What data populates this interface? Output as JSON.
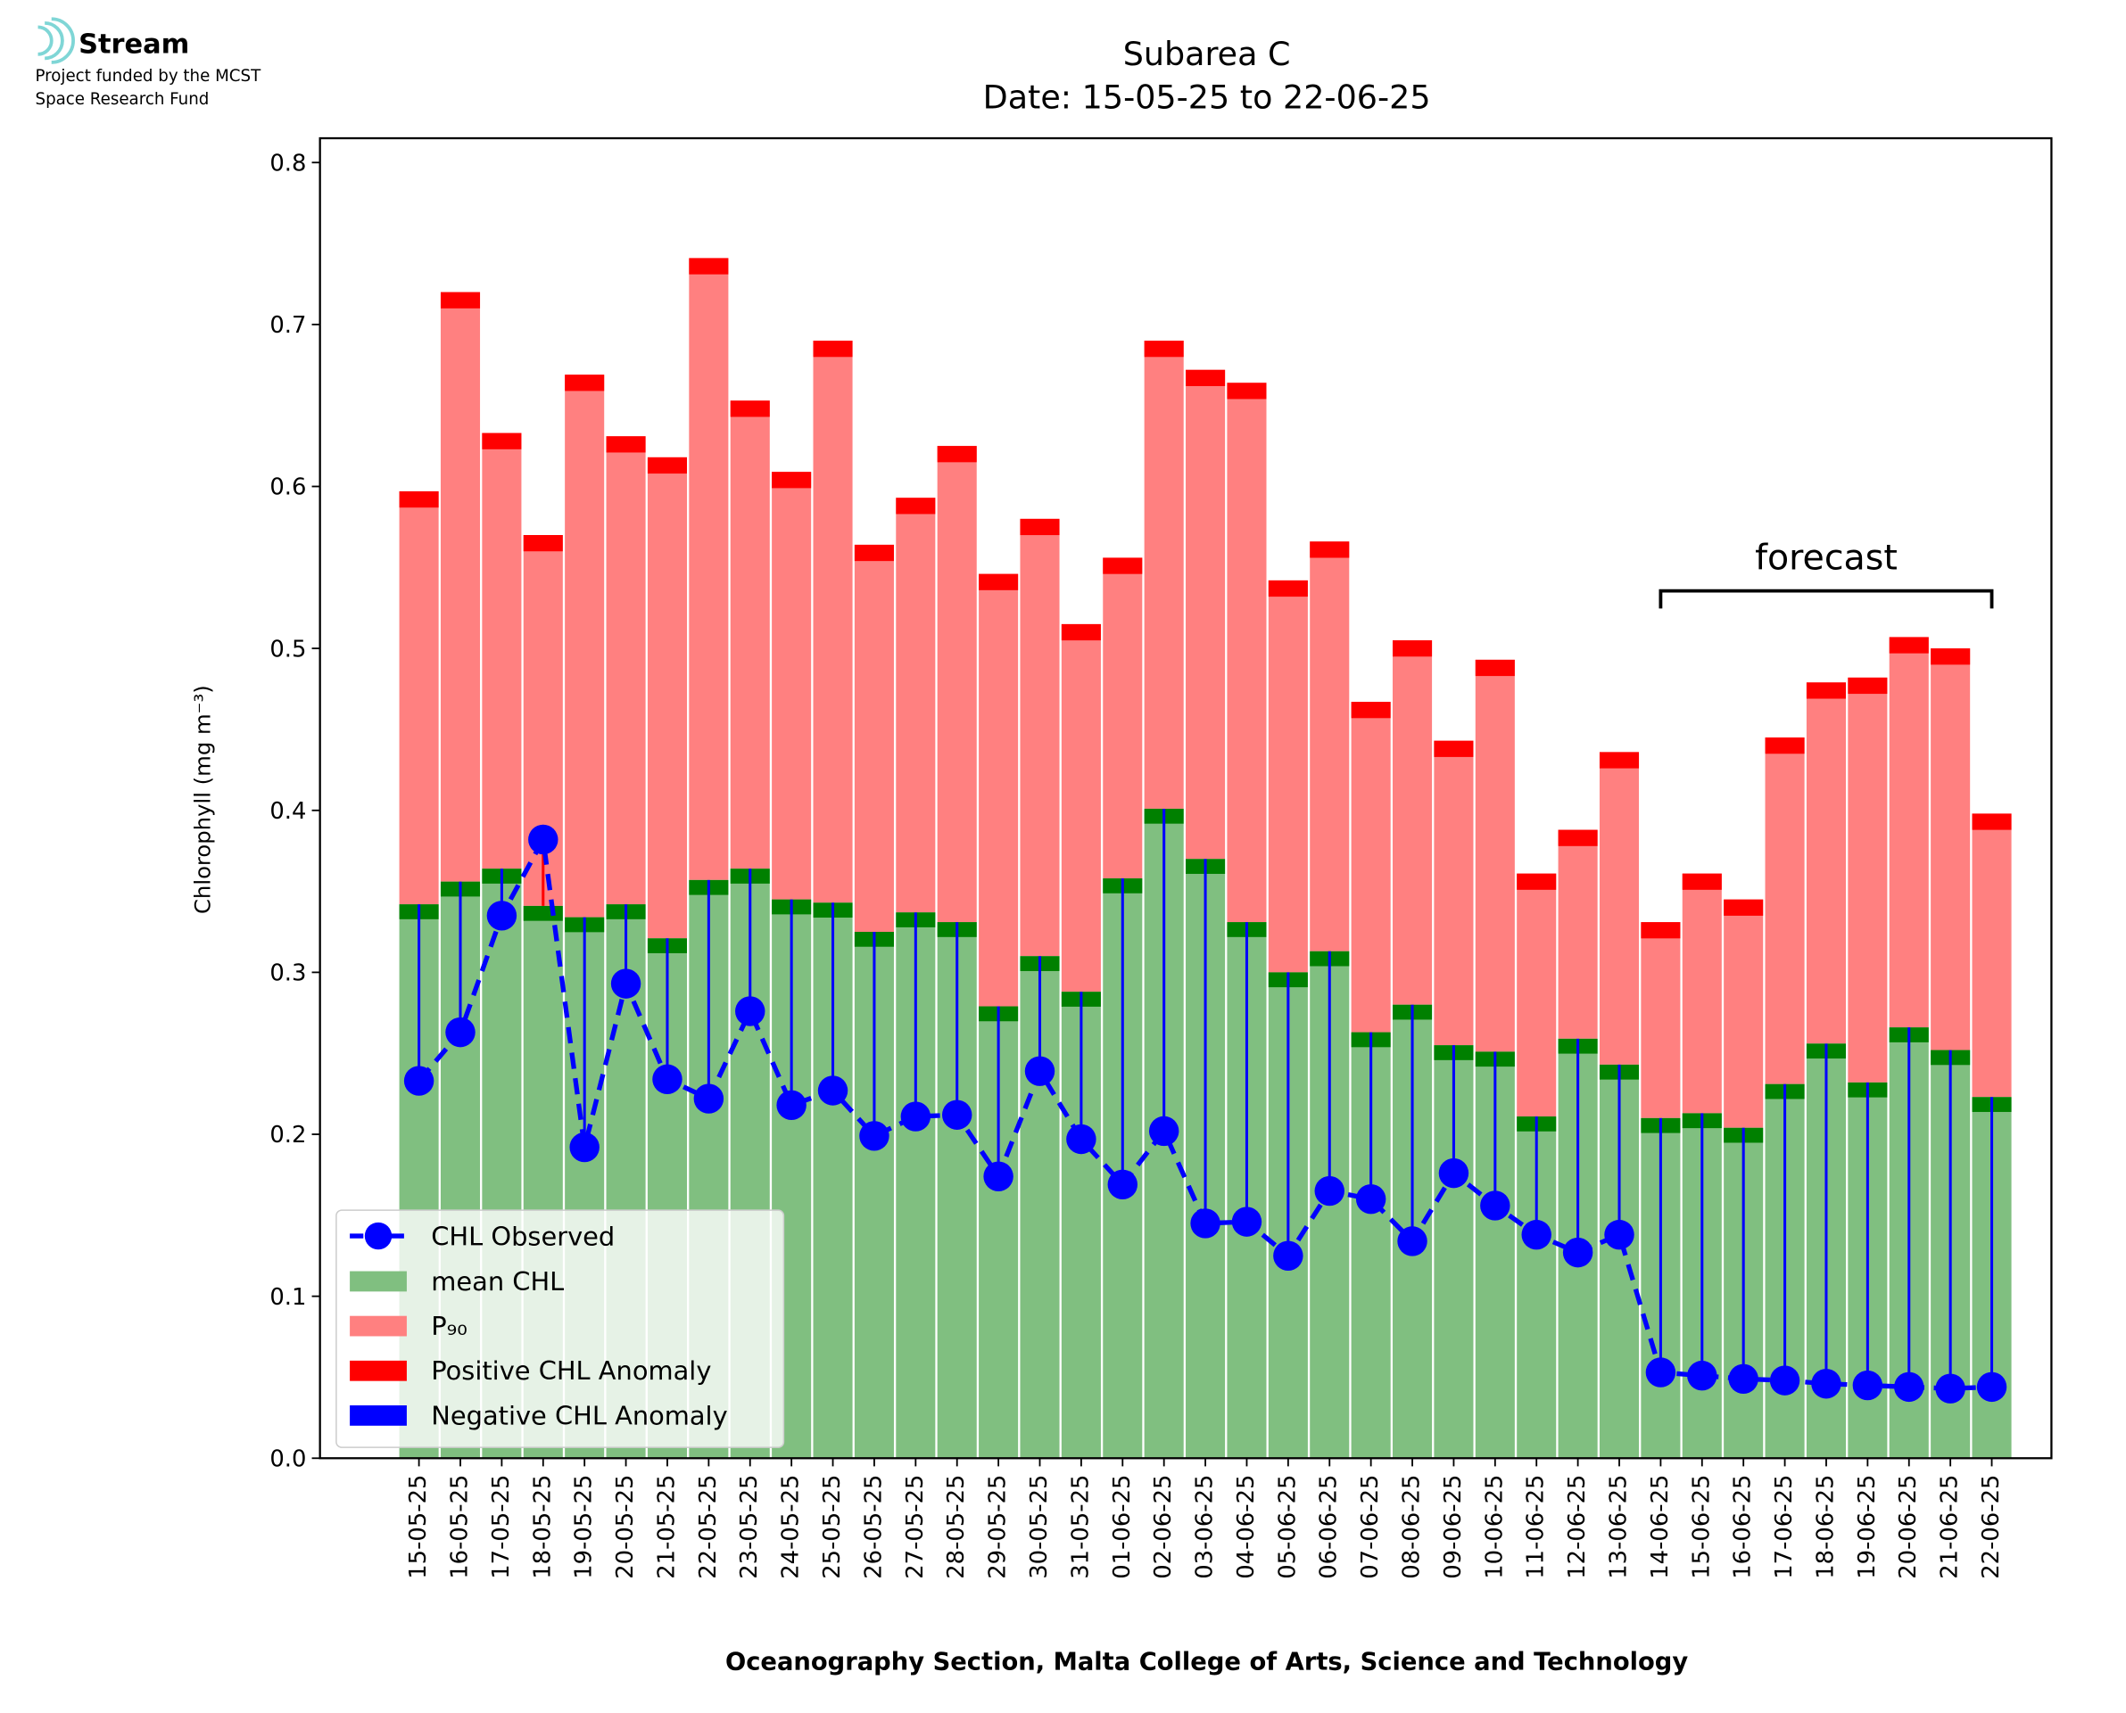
{
  "logo": {
    "name": "Stream",
    "lines": [
      "Project funded by the MCST",
      "Space Research Fund"
    ]
  },
  "chart_data": {
    "type": "bar",
    "title": [
      "Subarea C",
      "Date: 15-05-25 to 22-06-25"
    ],
    "y_label": "Chlorophyll (mg m⁻³)",
    "x_label": "Oceanography Section, Malta College of Arts, Science and Technology",
    "annotation": "forecast",
    "forecast_range": [
      "14-06-25",
      "22-06-25"
    ],
    "categories": [
      "15-05-25",
      "16-05-25",
      "17-05-25",
      "18-05-25",
      "19-05-25",
      "20-05-25",
      "21-05-25",
      "22-05-25",
      "23-05-25",
      "24-05-25",
      "25-05-25",
      "26-05-25",
      "27-05-25",
      "28-05-25",
      "29-05-25",
      "30-05-25",
      "31-05-25",
      "01-06-25",
      "02-06-25",
      "03-06-25",
      "04-06-25",
      "05-06-25",
      "06-06-25",
      "07-06-25",
      "08-06-25",
      "09-06-25",
      "10-06-25",
      "11-06-25",
      "12-06-25",
      "13-06-25",
      "14-06-25",
      "15-06-25",
      "16-06-25",
      "17-06-25",
      "18-06-25",
      "19-06-25",
      "20-06-25",
      "21-06-25",
      "22-06-25"
    ],
    "series": [
      {
        "name": "CHL Observed",
        "color": "#0000ff",
        "values": [
          0.233,
          0.263,
          0.335,
          0.382,
          0.192,
          0.293,
          0.234,
          0.222,
          0.276,
          0.218,
          0.227,
          0.199,
          0.211,
          0.212,
          0.174,
          0.239,
          0.197,
          0.169,
          0.202,
          0.145,
          0.146,
          0.125,
          0.165,
          0.16,
          0.134,
          0.176,
          0.156,
          0.138,
          0.127,
          0.138,
          0.053,
          0.051,
          0.049,
          0.048,
          0.046,
          0.045,
          0.044,
          0.043,
          0.044
        ]
      },
      {
        "name": "mean CHL",
        "color": "#80bf80",
        "values": [
          0.342,
          0.356,
          0.364,
          0.341,
          0.334,
          0.342,
          0.321,
          0.357,
          0.364,
          0.345,
          0.343,
          0.325,
          0.337,
          0.331,
          0.279,
          0.31,
          0.288,
          0.358,
          0.401,
          0.37,
          0.331,
          0.3,
          0.313,
          0.263,
          0.28,
          0.255,
          0.251,
          0.211,
          0.259,
          0.243,
          0.21,
          0.213,
          0.204,
          0.231,
          0.256,
          0.232,
          0.266,
          0.252,
          0.223
        ]
      },
      {
        "name": "P₉₀",
        "color": "#ff8080",
        "values": [
          0.597,
          0.72,
          0.633,
          0.57,
          0.669,
          0.631,
          0.618,
          0.741,
          0.653,
          0.609,
          0.69,
          0.564,
          0.593,
          0.625,
          0.546,
          0.58,
          0.515,
          0.556,
          0.69,
          0.672,
          0.664,
          0.542,
          0.566,
          0.467,
          0.505,
          0.443,
          0.493,
          0.361,
          0.388,
          0.436,
          0.331,
          0.361,
          0.345,
          0.445,
          0.479,
          0.482,
          0.507,
          0.5,
          0.398
        ]
      }
    ],
    "anomaly_legend": [
      {
        "name": "Positive CHL Anomaly",
        "color": "#ff0000"
      },
      {
        "name": "Negative CHL Anomaly",
        "color": "#0000ff"
      }
    ],
    "mean_band_color": "#008000",
    "ylim": [
      0,
      0.815
    ],
    "yticks": [
      {
        "value": 0,
        "label": "0.0"
      },
      0.1,
      0.2,
      0.3,
      0.4,
      0.5,
      0.6,
      0.7,
      0.8
    ],
    "legend": "lower left"
  }
}
